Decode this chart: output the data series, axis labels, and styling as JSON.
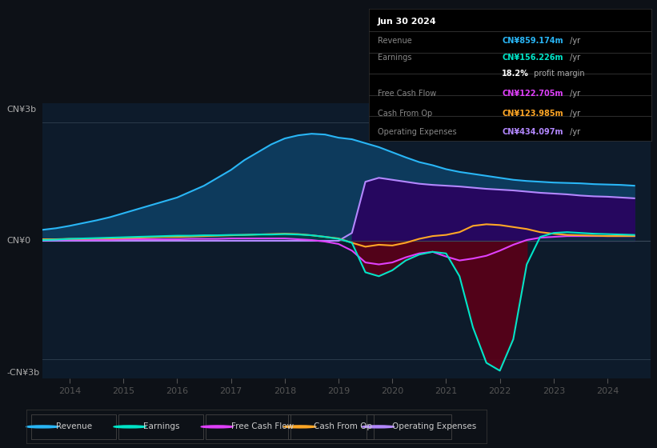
{
  "bg_color": "#0d1117",
  "plot_bg_color": "#0d1b2b",
  "ylabel_top": "CN¥3b",
  "ylabel_zero": "CN¥0",
  "ylabel_bottom": "-CN¥3b",
  "years": [
    2014,
    2015,
    2016,
    2017,
    2018,
    2019,
    2020,
    2021,
    2022,
    2023,
    2024
  ],
  "xlim": [
    2013.5,
    2024.8
  ],
  "ylim": [
    -3500000000.0,
    3500000000.0
  ],
  "revenue_color": "#29b6f6",
  "revenue_fill": "#0d3a5c",
  "earnings_color": "#00e5c8",
  "earnings_fill_neg": "#3d0010",
  "earnings_fill_pos": "#003d30",
  "fcf_color": "#e040fb",
  "cfo_color": "#ffa726",
  "opex_color": "#b388ff",
  "opex_fill": "#2d0060",
  "legend": [
    {
      "label": "Revenue",
      "color": "#29b6f6"
    },
    {
      "label": "Earnings",
      "color": "#00e5c8"
    },
    {
      "label": "Free Cash Flow",
      "color": "#e040fb"
    },
    {
      "label": "Cash From Op",
      "color": "#ffa726"
    },
    {
      "label": "Operating Expenses",
      "color": "#b388ff"
    }
  ],
  "info_date": "Jun 30 2024",
  "info_rows": [
    {
      "label": "Revenue",
      "value": "CN¥859.174m",
      "color": "#29b6f6",
      "suffix": " /yr"
    },
    {
      "label": "Earnings",
      "value": "CN¥156.226m",
      "color": "#00e5c8",
      "suffix": " /yr"
    },
    {
      "label": "",
      "value": "18.2%",
      "color": "#ffffff",
      "suffix": " profit margin"
    },
    {
      "label": "Free Cash Flow",
      "value": "CN¥122.705m",
      "color": "#e040fb",
      "suffix": " /yr"
    },
    {
      "label": "Cash From Op",
      "value": "CN¥123.985m",
      "color": "#ffa726",
      "suffix": " /yr"
    },
    {
      "label": "Operating Expenses",
      "value": "CN¥434.097m",
      "color": "#b388ff",
      "suffix": " /yr"
    }
  ]
}
